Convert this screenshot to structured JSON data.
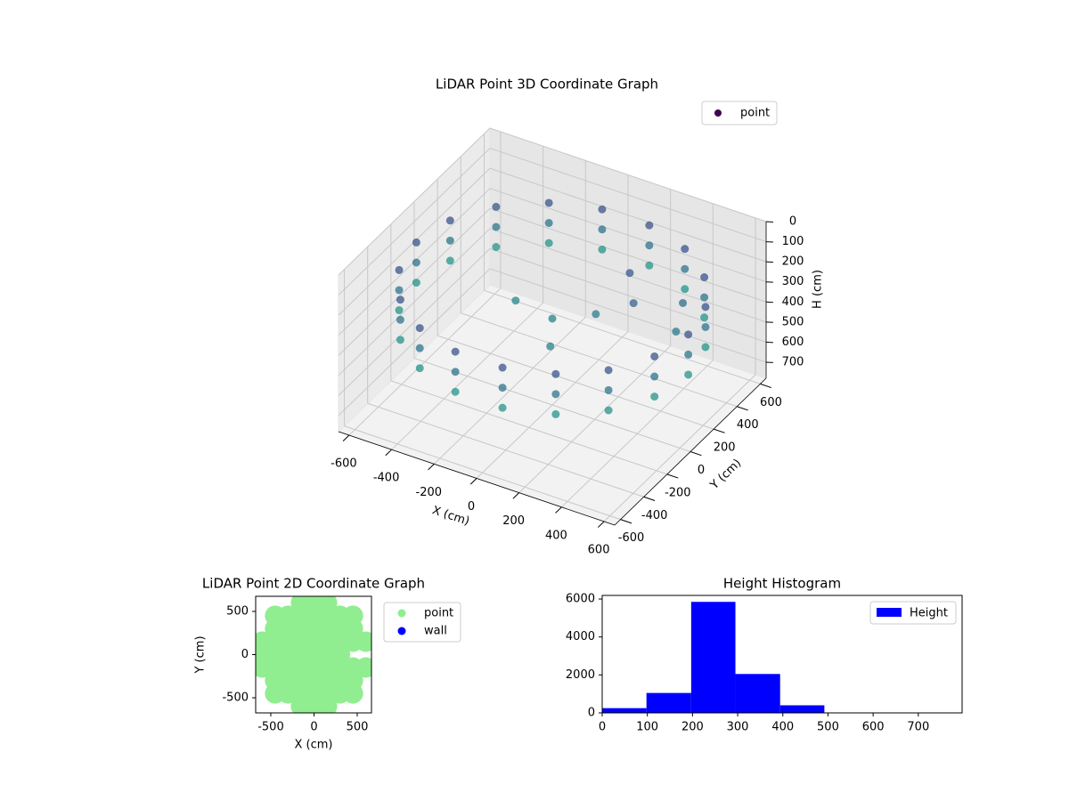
{
  "chart_data": [
    {
      "type": "scatter3d",
      "title": "LiDAR Point 3D Coordinate Graph",
      "xlabel": "X (cm)",
      "ylabel": "Y (cm)",
      "zlabel": "H (cm)",
      "xlim": [
        -650,
        650
      ],
      "ylim": [
        -650,
        650
      ],
      "zlim": [
        0,
        780
      ],
      "xticks": [
        -600,
        -400,
        -200,
        0,
        200,
        400,
        600
      ],
      "yticks": [
        -600,
        -400,
        -200,
        0,
        200,
        400,
        600
      ],
      "zticks": [
        0,
        100,
        200,
        300,
        400,
        500,
        600,
        700
      ],
      "grid": true,
      "series": [
        {
          "name": "point",
          "colormap": "viridis",
          "x": [
            640,
            601,
            490,
            320,
            111,
            -111,
            -320,
            -490,
            -601,
            -640,
            -601,
            -490,
            -320,
            -111,
            111,
            320,
            490,
            601,
            640,
            601,
            490,
            320,
            111,
            -111,
            -320,
            -490,
            -601,
            -640,
            -601,
            -490,
            -320,
            -111,
            111,
            320,
            490,
            601,
            640,
            601,
            490,
            320,
            111,
            -111,
            -320,
            -490,
            -601,
            -640,
            -601,
            -490,
            -320,
            -111,
            111,
            320,
            490,
            601,
            0,
            150,
            -200,
            100,
            300,
            450,
            500,
            200
          ],
          "y": [
            0,
            219,
            411,
            554,
            630,
            630,
            554,
            411,
            219,
            0,
            -219,
            -411,
            -554,
            -630,
            -630,
            -554,
            -411,
            -219,
            0,
            219,
            411,
            554,
            630,
            630,
            554,
            411,
            219,
            0,
            -219,
            -411,
            -554,
            -630,
            -630,
            -554,
            -411,
            -219,
            0,
            219,
            411,
            554,
            630,
            630,
            554,
            411,
            219,
            0,
            -219,
            -411,
            -554,
            -630,
            -630,
            -554,
            -411,
            -219,
            0,
            100,
            50,
            -200,
            150,
            300,
            150,
            300
          ],
          "z": [
            200,
            200,
            200,
            200,
            200,
            200,
            200,
            200,
            200,
            200,
            200,
            200,
            200,
            200,
            200,
            200,
            200,
            200,
            300,
            300,
            300,
            300,
            300,
            300,
            300,
            300,
            300,
            300,
            300,
            300,
            300,
            300,
            300,
            300,
            300,
            300,
            400,
            400,
            400,
            400,
            400,
            400,
            400,
            400,
            400,
            400,
            400,
            400,
            400,
            400,
            400,
            400,
            400,
            400,
            350,
            330,
            360,
            340,
            250,
            280,
            320,
            220
          ]
        }
      ]
    },
    {
      "type": "scatter",
      "title": "LiDAR Point 2D Coordinate Graph",
      "xlabel": "X (cm)",
      "ylabel": "Y (cm)",
      "xlim": [
        -675,
        665
      ],
      "ylim": [
        -675,
        675
      ],
      "xticks": [
        -500,
        0,
        500
      ],
      "yticks": [
        -500,
        0,
        500
      ],
      "series": [
        {
          "name": "point",
          "color": "#90ee90",
          "x": [
            -150,
            0,
            150,
            -450,
            -300,
            -150,
            0,
            150,
            300,
            450,
            -450,
            -300,
            -150,
            0,
            150,
            300,
            450,
            -600,
            -450,
            -300,
            -150,
            0,
            150,
            300,
            450,
            600,
            -600,
            -450,
            -300,
            -150,
            0,
            150,
            300,
            -600,
            -450,
            -300,
            -150,
            0,
            150,
            300,
            450,
            600,
            -450,
            -300,
            -150,
            0,
            150,
            300,
            450,
            -450,
            -300,
            -150,
            0,
            150,
            300,
            450,
            -150,
            0,
            150
          ],
          "y": [
            600,
            600,
            600,
            450,
            450,
            450,
            450,
            450,
            450,
            450,
            300,
            300,
            300,
            300,
            300,
            300,
            300,
            150,
            150,
            150,
            150,
            150,
            150,
            150,
            150,
            150,
            0,
            0,
            0,
            0,
            0,
            0,
            0,
            -150,
            -150,
            -150,
            -150,
            -150,
            -150,
            -150,
            -150,
            -150,
            -300,
            -300,
            -300,
            -300,
            -300,
            -300,
            -300,
            -450,
            -450,
            -450,
            -450,
            -450,
            -450,
            -450,
            -600,
            -600,
            -600
          ]
        },
        {
          "name": "wall",
          "color": "#0000ff",
          "x": [],
          "y": []
        }
      ]
    },
    {
      "type": "histogram",
      "title": "Height Histogram",
      "xlim": [
        0,
        797
      ],
      "ylim": [
        0,
        6190
      ],
      "xticks": [
        0,
        100,
        200,
        300,
        400,
        500,
        600,
        700
      ],
      "yticks": [
        0,
        2000,
        4000,
        6000
      ],
      "series": [
        {
          "name": "Height",
          "color": "#0000ff",
          "bins": [
            0,
            98,
            197,
            295,
            394,
            492,
            590,
            689,
            787
          ],
          "counts": [
            250,
            1050,
            5850,
            2050,
            400,
            0,
            0,
            0
          ]
        }
      ]
    }
  ]
}
